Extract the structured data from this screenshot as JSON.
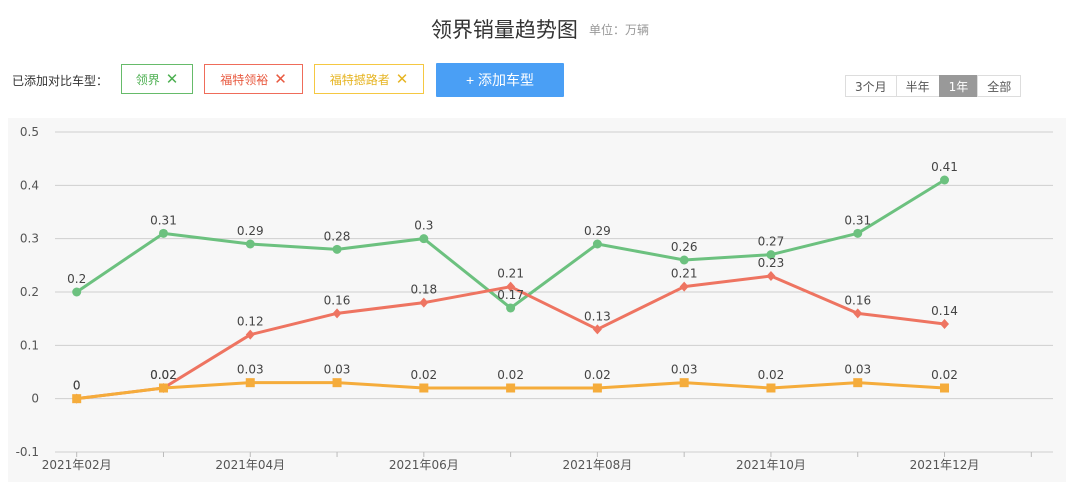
{
  "header": {
    "title": "领界销量趋势图",
    "unit": "单位：万辆"
  },
  "compare": {
    "label": "已添加对比车型：",
    "tags": [
      {
        "name": "领界",
        "color": "#5cb85c"
      },
      {
        "name": "福特领裕",
        "color": "#e8593f"
      },
      {
        "name": "福特撼路者",
        "color": "#f5a623"
      }
    ],
    "add_label": "+ 添加车型"
  },
  "ranges": [
    {
      "label": "3个月",
      "active": false
    },
    {
      "label": "半年",
      "active": false
    },
    {
      "label": "1年",
      "active": true
    },
    {
      "label": "全部",
      "active": false
    }
  ],
  "chart_data": {
    "type": "line",
    "x": [
      2,
      3,
      4,
      5,
      6,
      7,
      8,
      9,
      10,
      11,
      12
    ],
    "x_ticks": [
      {
        "x": 2,
        "label": "2021年02月"
      },
      {
        "x": 4,
        "label": "2021年04月"
      },
      {
        "x": 6,
        "label": "2021年06月"
      },
      {
        "x": 8,
        "label": "2021年08月"
      },
      {
        "x": 10,
        "label": "2021年10月"
      },
      {
        "x": 12,
        "label": "2021年12月"
      }
    ],
    "xlim": [
      1.75,
      13.25
    ],
    "ylim": [
      -0.1,
      0.5
    ],
    "y_ticks": [
      -0.1,
      0,
      0.1,
      0.2,
      0.3,
      0.4,
      0.5
    ],
    "grid": true,
    "series": [
      {
        "name": "领界",
        "color": "#6cc17f",
        "marker": "circle",
        "values": [
          0.2,
          0.31,
          0.29,
          0.28,
          0.3,
          0.17,
          0.29,
          0.26,
          0.27,
          0.31,
          0.41
        ]
      },
      {
        "name": "福特领裕",
        "color": "#ee7461",
        "marker": "diamond",
        "values": [
          0,
          0.02,
          0.12,
          0.16,
          0.18,
          0.21,
          0.13,
          0.21,
          0.23,
          0.16,
          0.14
        ]
      },
      {
        "name": "福特撼路者",
        "color": "#f5ac3b",
        "marker": "square",
        "values": [
          0,
          0.02,
          0.03,
          0.03,
          0.02,
          0.02,
          0.02,
          0.03,
          0.02,
          0.03,
          0.02
        ]
      }
    ]
  }
}
